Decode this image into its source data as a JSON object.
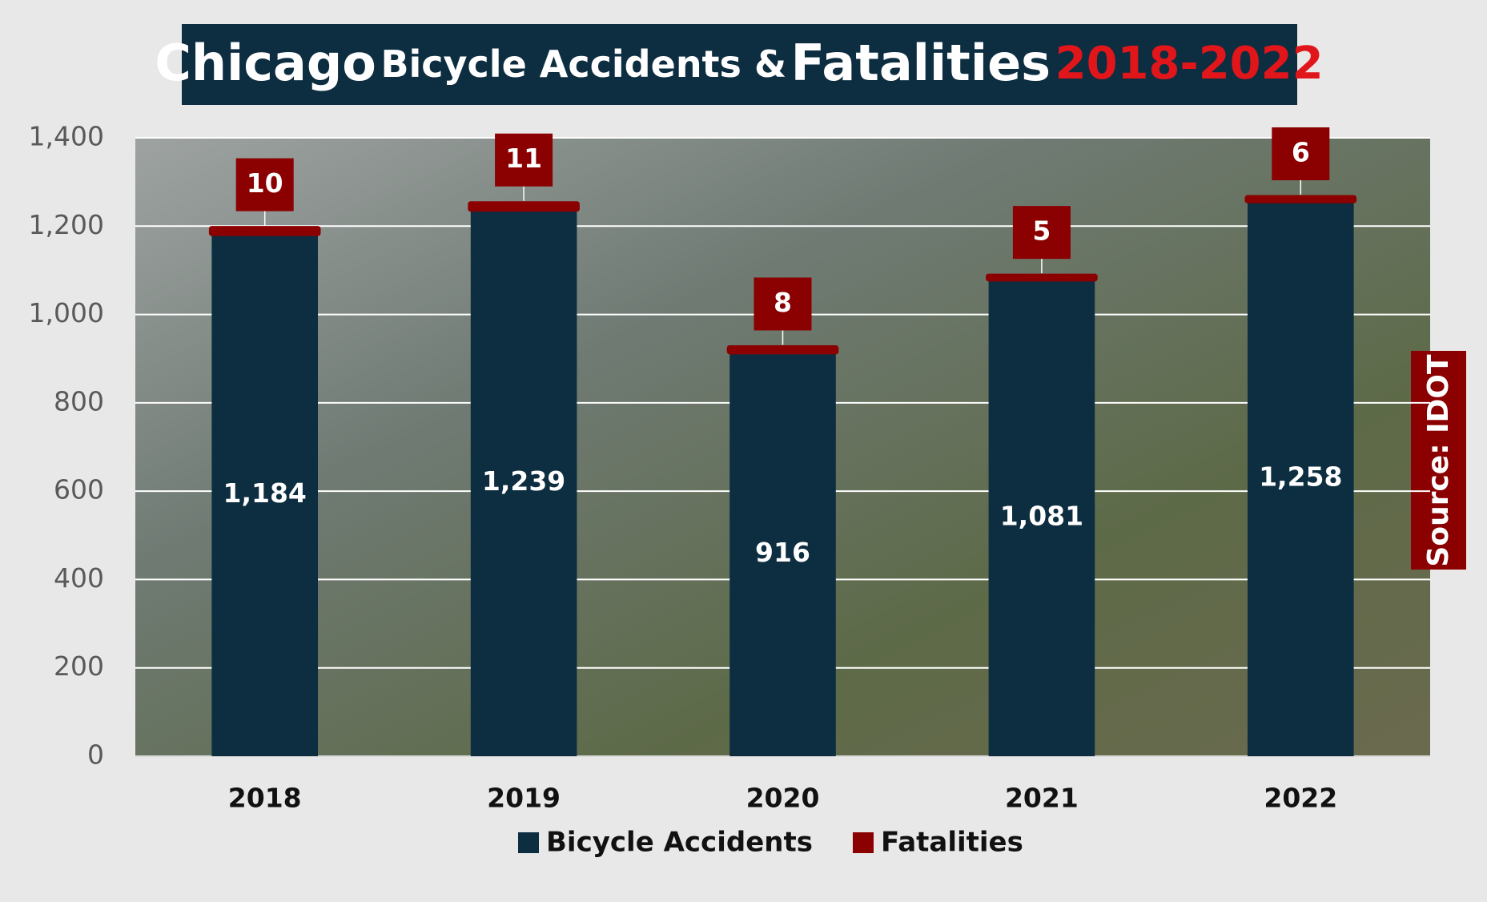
{
  "chart_data": {
    "type": "stacked_bar",
    "title": [
      "Chicago",
      "Bicycle Accidents &",
      "Fatalities",
      "2018-2022"
    ],
    "source": "Source: IDOT",
    "categories": [
      "2018",
      "2019",
      "2020",
      "2021",
      "2022"
    ],
    "series": [
      {
        "name": "Bicycle Accidents",
        "color": "#0d2d40",
        "values": [
          1184,
          1239,
          916,
          1081,
          1258
        ],
        "value_labels": [
          "1,184",
          "1,239",
          "916",
          "1,081",
          "1,258"
        ]
      },
      {
        "name": "Fatalities",
        "color": "#8b0000",
        "values": [
          10,
          11,
          8,
          5,
          6
        ]
      }
    ],
    "ylim": [
      0,
      1400
    ],
    "yticks": [
      0,
      {
        "value": 200,
        "label": "200"
      },
      400,
      600,
      800,
      {
        "value": 1000,
        "label": "1,000"
      },
      {
        "value": 1200,
        "label": "1,200"
      },
      {
        "value": 1400,
        "label": "1,400"
      }
    ],
    "grid": true,
    "legend": "bottom"
  }
}
